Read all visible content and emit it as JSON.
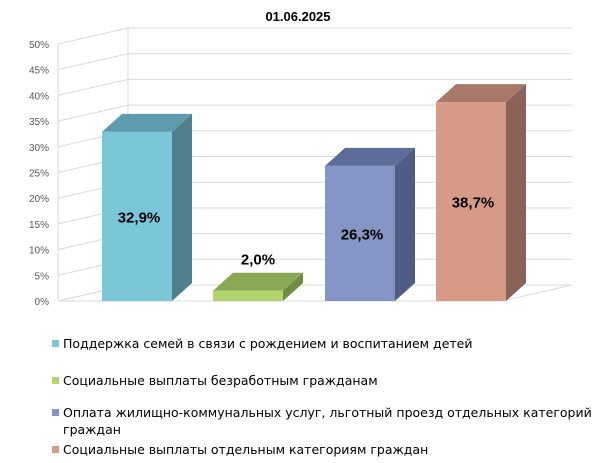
{
  "chart_data": {
    "type": "bar",
    "title": "01.06.2025",
    "categories": [
      "Поддержка семей в связи с рождением и воспитанием детей",
      "Социальные выплаты безработным гражданам",
      "Оплата жилищно-коммунальных услуг, льготный проезд отдельных категорий граждан",
      "Социальные выплаты отдельным категориям граждан"
    ],
    "values": [
      32.9,
      2.0,
      26.3,
      38.7
    ],
    "data_labels": [
      "32,9%",
      "2,0%",
      "26,3%",
      "38,7%"
    ],
    "y_ticks": [
      "0%",
      "5%",
      "10%",
      "15%",
      "20%",
      "25%",
      "30%",
      "35%",
      "40%",
      "45%",
      "50%"
    ],
    "ylim": [
      0,
      50
    ],
    "grid": true,
    "legend_position": "bottom",
    "colors": [
      {
        "front": "#7ac7d9",
        "top": "#5e9bac",
        "side": "#507f8d"
      },
      {
        "front": "#b3d56d",
        "top": "#8aa954",
        "side": "#718a44"
      },
      {
        "front": "#8596c6",
        "top": "#5c6d9a",
        "side": "#4f5d84"
      },
      {
        "front": "#d69a87",
        "top": "#a8786a",
        "side": "#8a6257"
      }
    ]
  }
}
